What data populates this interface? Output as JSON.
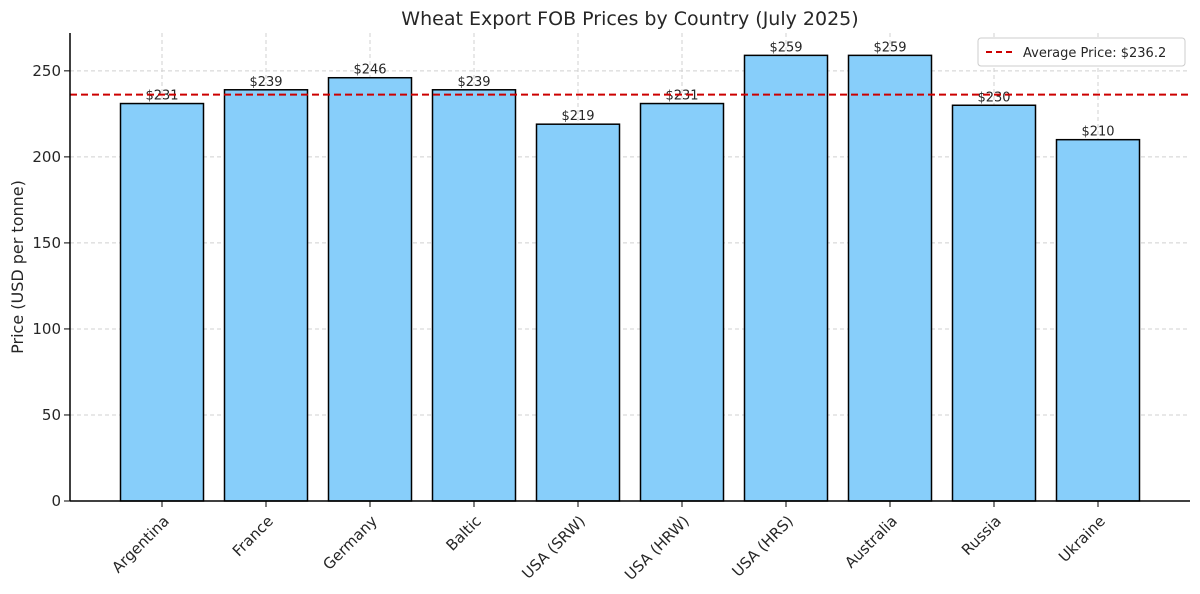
{
  "chart_data": {
    "type": "bar",
    "title": "Wheat Export FOB Prices by Country (July 2025)",
    "xlabel": "",
    "ylabel": "Price (USD per tonne)",
    "categories": [
      "Argentina",
      "France",
      "Germany",
      "Baltic",
      "USA (SRW)",
      "USA (HRW)",
      "USA (HRS)",
      "Australia",
      "Russia",
      "Ukraine"
    ],
    "values": [
      231,
      239,
      246,
      239,
      219,
      231,
      259,
      259,
      230,
      210
    ],
    "data_labels": [
      "$231",
      "$239",
      "$246",
      "$239",
      "$219",
      "$231",
      "$259",
      "$259",
      "$230",
      "$210"
    ],
    "ylim": [
      0,
      272
    ],
    "yticks": [
      0,
      50,
      100,
      150,
      200,
      250
    ],
    "grid": true,
    "bar_color": "#87cefa",
    "bar_edge_color": "#000000",
    "reference_line": {
      "value": 236.2,
      "label": "Average Price: $236.2",
      "color": "#cc0000",
      "style": "dashed"
    },
    "legend": {
      "placement": "top-right"
    }
  }
}
